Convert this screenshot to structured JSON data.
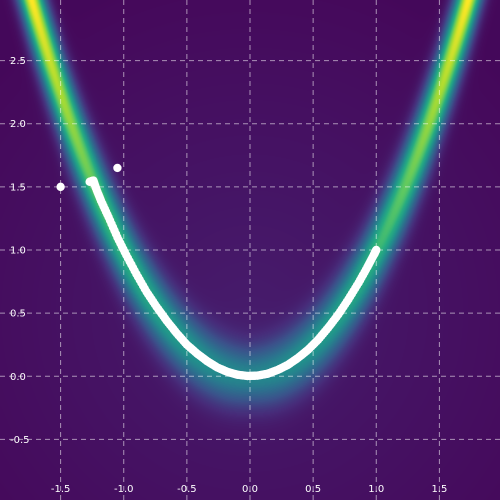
{
  "chart_data": {
    "type": "heatmap",
    "description_of_field": "Rosenbrock function value shown as a viridis heatmap, with an optimization trajectory overlaid as white points",
    "colormap": "viridis",
    "xlim": [
      -1.98,
      1.98
    ],
    "ylim": [
      -0.98,
      2.98
    ],
    "x_ticks": [
      -1.5,
      -1.0,
      -0.5,
      0.0,
      0.5,
      1.0,
      1.5
    ],
    "y_ticks": [
      -0.5,
      0.0,
      0.5,
      1.0,
      1.5,
      2.0,
      2.5
    ],
    "x_tick_labels": [
      "-1.5",
      "-1.0",
      "-0.5",
      "0.0",
      "0.5",
      "1.0",
      "1.5"
    ],
    "y_tick_labels": [
      "-0.5",
      "0.0",
      "0.5",
      "1.0",
      "1.5",
      "2.0",
      "2.5"
    ],
    "grid": true,
    "title": "",
    "xlabel": "",
    "ylabel": "",
    "trajectory": {
      "color": "#ffffff",
      "points": [
        [
          -1.5,
          1.5
        ],
        [
          -1.05,
          1.65
        ],
        [
          -1.27,
          1.54
        ],
        [
          -1.24,
          1.55
        ],
        [
          -1.22,
          1.49
        ],
        [
          -1.18,
          1.39
        ],
        [
          -1.12,
          1.26
        ],
        [
          -1.05,
          1.1
        ],
        [
          -0.98,
          0.96
        ],
        [
          -0.9,
          0.81
        ],
        [
          -0.82,
          0.67
        ],
        [
          -0.74,
          0.55
        ],
        [
          -0.66,
          0.44
        ],
        [
          -0.58,
          0.34
        ],
        [
          -0.5,
          0.25
        ],
        [
          -0.42,
          0.18
        ],
        [
          -0.34,
          0.12
        ],
        [
          -0.26,
          0.07
        ],
        [
          -0.18,
          0.035
        ],
        [
          -0.1,
          0.012
        ],
        [
          -0.02,
          0.002
        ],
        [
          0.06,
          0.005
        ],
        [
          0.14,
          0.02
        ],
        [
          0.22,
          0.05
        ],
        [
          0.3,
          0.09
        ],
        [
          0.38,
          0.145
        ],
        [
          0.46,
          0.21
        ],
        [
          0.54,
          0.29
        ],
        [
          0.62,
          0.385
        ],
        [
          0.7,
          0.49
        ],
        [
          0.78,
          0.61
        ],
        [
          0.86,
          0.74
        ],
        [
          0.93,
          0.865
        ],
        [
          0.98,
          0.96
        ],
        [
          1.0,
          1.0
        ]
      ]
    }
  }
}
